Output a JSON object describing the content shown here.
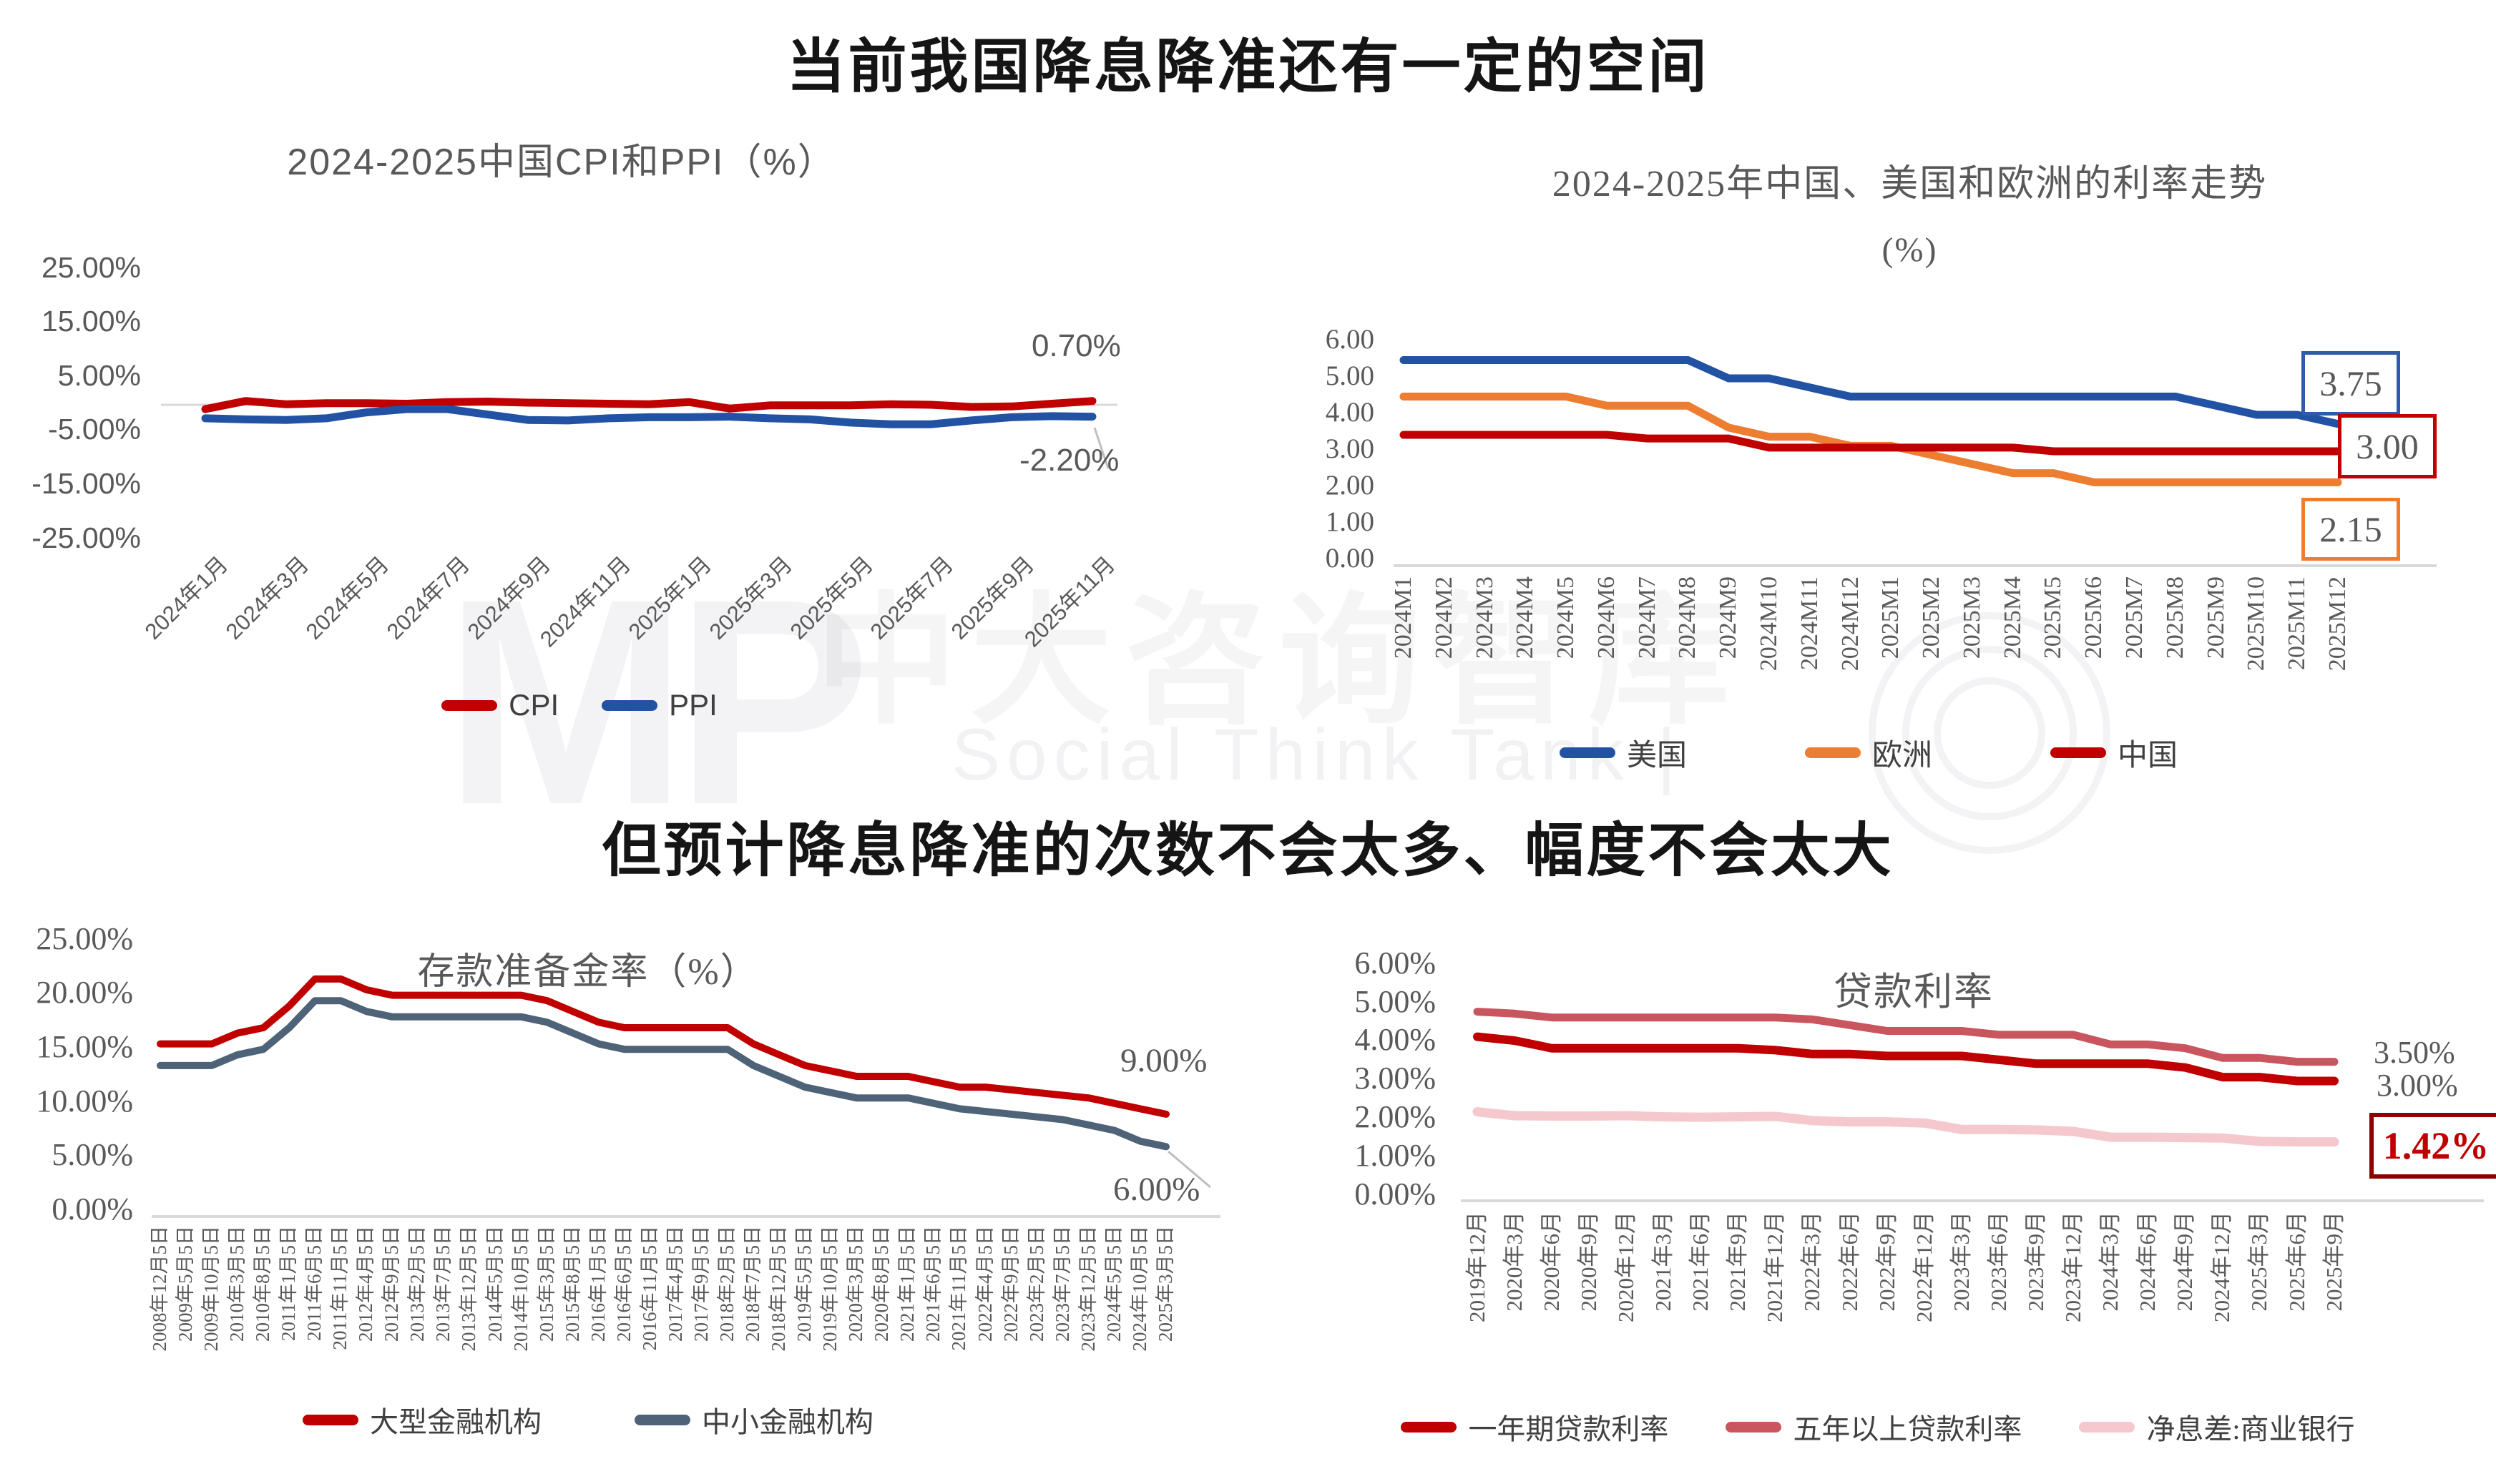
{
  "page": {
    "title_top": "当前我国降息降准还有一定的空间",
    "title_middle": "但预计降息降准的次数不会太多、幅度不会太大"
  },
  "watermark": {
    "logo": "MP",
    "brand": "中大咨询智库",
    "tagline": "Social Think Tank |"
  },
  "colors": {
    "red": "#C00000",
    "blue": "#2152A3",
    "orange": "#ED7D31",
    "slate": "#4E6378",
    "rose": "#C9565E",
    "pink": "#F5C8CD",
    "tick_gray": "#595959",
    "axis_gray": "#D9D9D9"
  },
  "chart_data": [
    {
      "type": "line",
      "title": "2024-2025中国CPI和PPI（%）",
      "ylim": [
        -25,
        25
      ],
      "grid": false,
      "legend_position": "bottom",
      "y_ticks": [
        {
          "v": 25,
          "label": "25.00%"
        },
        {
          "v": 15,
          "label": "15.00%"
        },
        {
          "v": 5,
          "label": "5.00%"
        },
        {
          "v": -5,
          "label": "-5.00%"
        },
        {
          "v": -15,
          "label": "-15.00%"
        },
        {
          "v": -25,
          "label": "-25.00%"
        }
      ],
      "x_labels": [
        "2024年1月",
        "2024年3月",
        "2024年5月",
        "2024年7月",
        "2024年9月",
        "2024年11月",
        "2025年1月",
        "2025年3月",
        "2025年5月",
        "2025年7月",
        "2025年9月",
        "2025年11月"
      ],
      "series": [
        {
          "key": "cpi",
          "name": "CPI",
          "color": "#C00000",
          "width": 11,
          "values": [
            -0.8,
            0.7,
            0.1,
            0.3,
            0.3,
            0.2,
            0.5,
            0.6,
            0.4,
            0.3,
            0.2,
            0.1,
            0.5,
            -0.7,
            -0.1,
            -0.1,
            -0.1,
            0.1,
            0,
            -0.4,
            -0.3,
            0.2,
            0.7
          ]
        },
        {
          "key": "ppi",
          "name": "PPI",
          "color": "#2152A3",
          "width": 11,
          "values": [
            -2.5,
            -2.7,
            -2.8,
            -2.5,
            -1.4,
            -0.8,
            -0.8,
            -1.8,
            -2.8,
            -2.9,
            -2.5,
            -2.3,
            -2.3,
            -2.2,
            -2.5,
            -2.7,
            -3.3,
            -3.6,
            -3.6,
            -2.9,
            -2.3,
            -2.1,
            -2.2
          ]
        }
      ],
      "legend": [
        {
          "label": "CPI",
          "color": "#C00000"
        },
        {
          "label": "PPI",
          "color": "#2152A3"
        }
      ],
      "annotations": [
        {
          "text": "0.70%"
        },
        {
          "text": "-2.20%"
        }
      ]
    },
    {
      "type": "line",
      "title": "2024-2025年中国、美国和欧洲的利率走势",
      "title_line2": "(%)",
      "ylim": [
        0,
        6
      ],
      "grid": false,
      "legend_position": "bottom",
      "y_ticks": [
        {
          "v": 6,
          "label": "6.00"
        },
        {
          "v": 5,
          "label": "5.00"
        },
        {
          "v": 4,
          "label": "4.00"
        },
        {
          "v": 3,
          "label": "3.00"
        },
        {
          "v": 2,
          "label": "2.00"
        },
        {
          "v": 1,
          "label": "1.00"
        },
        {
          "v": 0,
          "label": "0.00"
        }
      ],
      "x_labels": [
        "2024M1",
        "2024M2",
        "2024M3",
        "2024M4",
        "2024M5",
        "2024M6",
        "2024M7",
        "2024M8",
        "2024M9",
        "2024M10",
        "2024M11",
        "2024M12",
        "2025M1",
        "2025M2",
        "2025M3",
        "2025M4",
        "2025M5",
        "2025M6",
        "2025M7",
        "2025M8",
        "2025M9",
        "2025M10",
        "2025M11",
        "2025M12"
      ],
      "series": [
        {
          "key": "us",
          "name": "美国",
          "color": "#2152A3",
          "width": 11,
          "values": [
            5.5,
            5.5,
            5.5,
            5.5,
            5.5,
            5.5,
            5.5,
            5.5,
            5.0,
            5.0,
            4.75,
            4.5,
            4.5,
            4.5,
            4.5,
            4.5,
            4.5,
            4.5,
            4.5,
            4.5,
            4.25,
            4.0,
            4.0,
            3.75
          ]
        },
        {
          "key": "europe",
          "name": "欧洲",
          "color": "#ED7D31",
          "width": 11,
          "values": [
            4.5,
            4.5,
            4.5,
            4.5,
            4.5,
            4.25,
            4.25,
            4.25,
            3.65,
            3.4,
            3.4,
            3.15,
            3.15,
            2.9,
            2.65,
            2.4,
            2.4,
            2.15,
            2.15,
            2.15,
            2.15,
            2.15,
            2.15,
            2.15
          ]
        },
        {
          "key": "china",
          "name": "中国",
          "color": "#C00000",
          "width": 11,
          "values": [
            3.45,
            3.45,
            3.45,
            3.45,
            3.45,
            3.45,
            3.35,
            3.35,
            3.35,
            3.1,
            3.1,
            3.1,
            3.1,
            3.1,
            3.1,
            3.1,
            3.0,
            3.0,
            3.0,
            3.0,
            3.0,
            3.0,
            3.0,
            3.0
          ]
        }
      ],
      "legend": [
        {
          "label": "美国",
          "color": "#2152A3"
        },
        {
          "label": "欧洲",
          "color": "#ED7D31"
        },
        {
          "label": "中国",
          "color": "#C00000"
        }
      ],
      "end_labels": [
        {
          "text": "3.75",
          "border": "#2F5CA8"
        },
        {
          "text": "3.00",
          "border": "#C00000"
        },
        {
          "text": "2.15",
          "border": "#ED7D31"
        }
      ]
    },
    {
      "type": "line",
      "title": "存款准备金率（%）",
      "ylim": [
        0,
        25
      ],
      "grid": false,
      "legend_position": "bottom",
      "y_ticks": [
        {
          "v": 25,
          "label": "25.00%"
        },
        {
          "v": 20,
          "label": "20.00%"
        },
        {
          "v": 15,
          "label": "15.00%"
        },
        {
          "v": 10,
          "label": "10.00%"
        },
        {
          "v": 5,
          "label": "5.00%"
        },
        {
          "v": 0,
          "label": "0.00%"
        }
      ],
      "x_labels": [
        "2008年12月5日",
        "2009年5月5日",
        "2009年10月5日",
        "2010年3月5日",
        "2010年8月5日",
        "2011年1月5日",
        "2011年6月5日",
        "2011年11月5日",
        "2012年4月5日",
        "2012年9月5日",
        "2013年2月5日",
        "2013年7月5日",
        "2013年12月5日",
        "2014年5月5日",
        "2014年10月5日",
        "2015年3月5日",
        "2015年8月5日",
        "2016年1月5日",
        "2016年6月5日",
        "2016年11月5日",
        "2017年4月5日",
        "2017年9月5日",
        "2018年2月5日",
        "2018年7月5日",
        "2018年12月5日",
        "2019年5月5日",
        "2019年10月5日",
        "2020年3月5日",
        "2020年8月5日",
        "2021年1月5日",
        "2021年6月5日",
        "2021年11月5日",
        "2022年4月5日",
        "2022年9月5日",
        "2023年2月5日",
        "2023年7月5日",
        "2023年12月5日",
        "2024年5月5日",
        "2024年10月5日",
        "2025年3月5日"
      ],
      "series": [
        {
          "key": "large-banks",
          "name": "大型金融机构",
          "color": "#C00000",
          "width": 10,
          "values": [
            15.5,
            15.5,
            15.5,
            16.5,
            17,
            19,
            21.5,
            21.5,
            20.5,
            20,
            20,
            20,
            20,
            20,
            20,
            19.5,
            18.5,
            17.5,
            17,
            17,
            17,
            17,
            17,
            15.5,
            14.5,
            13.5,
            13,
            12.5,
            12.5,
            12.5,
            12,
            11.5,
            11.5,
            11.25,
            11,
            10.75,
            10.5,
            10,
            9.5,
            9
          ]
        },
        {
          "key": "small-banks",
          "name": "中小金融机构",
          "color": "#4E6378",
          "width": 10,
          "values": [
            13.5,
            13.5,
            13.5,
            14.5,
            15,
            17,
            19.5,
            19.5,
            18.5,
            18,
            18,
            18,
            18,
            18,
            18,
            17.5,
            16.5,
            15.5,
            15,
            15,
            15,
            15,
            15,
            13.5,
            12.5,
            11.5,
            11,
            10.5,
            10.5,
            10.5,
            10,
            9.5,
            9.25,
            9,
            8.75,
            8.5,
            8,
            7.5,
            6.5,
            6
          ]
        }
      ],
      "legend": [
        {
          "label": "大型金融机构",
          "color": "#C00000"
        },
        {
          "label": "中小金融机构",
          "color": "#4E6378"
        }
      ],
      "annotations": [
        {
          "text": "9.00%"
        },
        {
          "text": "6.00%"
        }
      ]
    },
    {
      "type": "line",
      "title": "贷款利率",
      "ylim": [
        0,
        6
      ],
      "grid": false,
      "legend_position": "bottom",
      "y_ticks": [
        {
          "v": 6,
          "label": "6.00%"
        },
        {
          "v": 5,
          "label": "5.00%"
        },
        {
          "v": 4,
          "label": "4.00%"
        },
        {
          "v": 3,
          "label": "3.00%"
        },
        {
          "v": 2,
          "label": "2.00%"
        },
        {
          "v": 1,
          "label": "1.00%"
        },
        {
          "v": 0,
          "label": "0.00%"
        }
      ],
      "x_labels": [
        "2019年12月",
        "2020年3月",
        "2020年6月",
        "2020年9月",
        "2020年12月",
        "2021年3月",
        "2021年6月",
        "2021年9月",
        "2021年12月",
        "2022年3月",
        "2022年6月",
        "2022年9月",
        "2022年12月",
        "2023年3月",
        "2023年6月",
        "2023年9月",
        "2023年12月",
        "2024年3月",
        "2024年6月",
        "2024年9月",
        "2024年12月",
        "2025年3月",
        "2025年6月",
        "2025年9月"
      ],
      "series": [
        {
          "key": "lpr-5y",
          "name": "五年以上贷款利率",
          "color": "#C9565E",
          "width": 11,
          "values": [
            4.8,
            4.75,
            4.65,
            4.65,
            4.65,
            4.65,
            4.65,
            4.65,
            4.65,
            4.6,
            4.45,
            4.3,
            4.3,
            4.3,
            4.2,
            4.2,
            4.2,
            3.95,
            3.95,
            3.85,
            3.6,
            3.6,
            3.5,
            3.5
          ]
        },
        {
          "key": "lpr-1y",
          "name": "一年期贷款利率",
          "color": "#C00000",
          "width": 12,
          "values": [
            4.15,
            4.05,
            3.85,
            3.85,
            3.85,
            3.85,
            3.85,
            3.85,
            3.8,
            3.7,
            3.7,
            3.65,
            3.65,
            3.65,
            3.55,
            3.45,
            3.45,
            3.45,
            3.45,
            3.35,
            3.1,
            3.1,
            3.0,
            3.0
          ]
        },
        {
          "key": "nim",
          "name": "净息差:商业银行",
          "color": "#F5C8CD",
          "width": 13,
          "values": [
            2.2,
            2.1,
            2.09,
            2.09,
            2.1,
            2.07,
            2.06,
            2.07,
            2.08,
            1.97,
            1.94,
            1.94,
            1.91,
            1.74,
            1.74,
            1.73,
            1.69,
            1.54,
            1.54,
            1.53,
            1.52,
            1.43,
            1.42,
            1.42
          ]
        }
      ],
      "legend": [
        {
          "label": "一年期贷款利率",
          "color": "#C00000"
        },
        {
          "label": "五年以上贷款利率",
          "color": "#C9565E"
        },
        {
          "label": "净息差:商业银行",
          "color": "#F5C8CD"
        }
      ],
      "annotations": [
        {
          "text": "3.50%"
        },
        {
          "text": "3.00%"
        },
        {
          "text": "1.42%"
        }
      ]
    }
  ]
}
